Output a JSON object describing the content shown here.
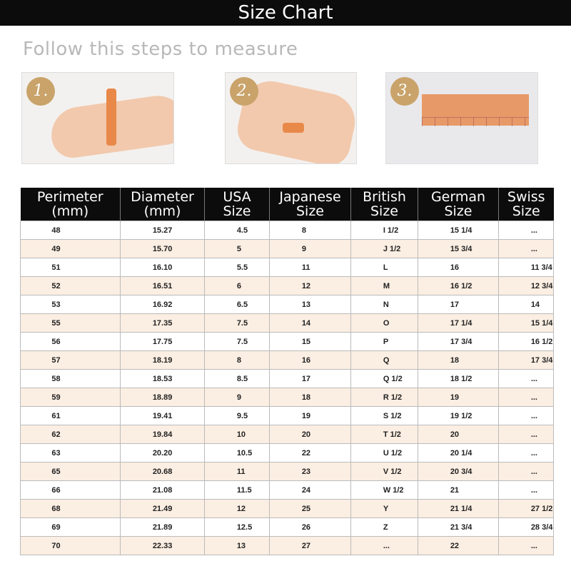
{
  "title": "Size Chart",
  "subtitle": "Follow this steps to measure",
  "steps": [
    {
      "label": "1."
    },
    {
      "label": "2."
    },
    {
      "label": "3."
    }
  ],
  "colors": {
    "header_bg": "#0c0c0c",
    "row_alt": "#fbeee2",
    "step_badge": "#c9a36a",
    "band": "#e8894a"
  },
  "table": {
    "headers": [
      [
        "Perimeter",
        "(mm)"
      ],
      [
        "Diameter",
        "(mm)"
      ],
      [
        "USA",
        "Size"
      ],
      [
        "Japanese",
        "Size"
      ],
      [
        "British",
        "Size"
      ],
      [
        "German",
        "Size"
      ],
      [
        "Swiss",
        "Size"
      ]
    ],
    "rows": [
      [
        "48",
        "15.27",
        "4.5",
        "8",
        "I 1/2",
        "15 1/4",
        "..."
      ],
      [
        "49",
        "15.70",
        "5",
        "9",
        "J 1/2",
        "15 3/4",
        "..."
      ],
      [
        "51",
        "16.10",
        "5.5",
        "11",
        "L",
        "16",
        "11 3/4"
      ],
      [
        "52",
        "16.51",
        "6",
        "12",
        "M",
        "16 1/2",
        "12 3/4"
      ],
      [
        "53",
        "16.92",
        "6.5",
        "13",
        "N",
        "17",
        "14"
      ],
      [
        "55",
        "17.35",
        "7.5",
        "14",
        "O",
        "17 1/4",
        "15 1/4"
      ],
      [
        "56",
        "17.75",
        "7.5",
        "15",
        "P",
        "17 3/4",
        "16 1/2"
      ],
      [
        "57",
        "18.19",
        "8",
        "16",
        "Q",
        "18",
        "17 3/4"
      ],
      [
        "58",
        "18.53",
        "8.5",
        "17",
        "Q 1/2",
        "18 1/2",
        "..."
      ],
      [
        "59",
        "18.89",
        "9",
        "18",
        "R 1/2",
        "19",
        "..."
      ],
      [
        "61",
        "19.41",
        "9.5",
        "19",
        "S 1/2",
        "19 1/2",
        "..."
      ],
      [
        "62",
        "19.84",
        "10",
        "20",
        "T 1/2",
        "20",
        "..."
      ],
      [
        "63",
        "20.20",
        "10.5",
        "22",
        "U 1/2",
        "20 1/4",
        "..."
      ],
      [
        "65",
        "20.68",
        "11",
        "23",
        "V 1/2",
        "20 3/4",
        "..."
      ],
      [
        "66",
        "21.08",
        "11.5",
        "24",
        "W 1/2",
        "21",
        "..."
      ],
      [
        "68",
        "21.49",
        "12",
        "25",
        "Y",
        "21 1/4",
        "27 1/2"
      ],
      [
        "69",
        "21.89",
        "12.5",
        "26",
        "Z",
        "21 3/4",
        "28 3/4"
      ],
      [
        "70",
        "22.33",
        "13",
        "27",
        "...",
        "22",
        "..."
      ]
    ]
  }
}
